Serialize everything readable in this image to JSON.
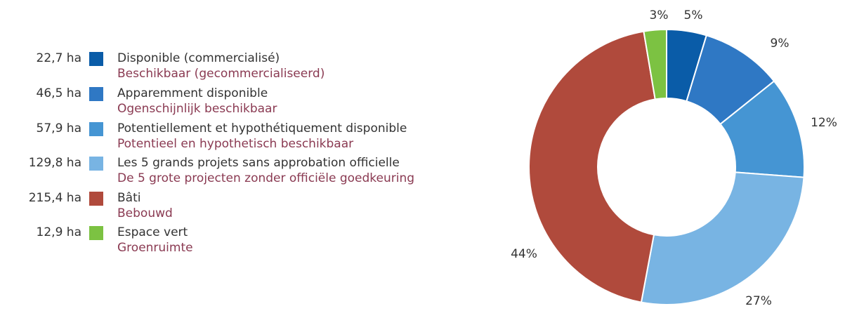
{
  "legend": [
    {
      "value": "22,7 ha",
      "label_fr": "Disponible (commercialisé)",
      "label_nl": "Beschikbaar (gecommercialiseerd)"
    },
    {
      "value": "46,5 ha",
      "label_fr": "Apparemment disponible",
      "label_nl": "Ogenschijnlijk beschikbaar"
    },
    {
      "value": "57,9 ha",
      "label_fr": "Potentiellement et hypothétiquement disponible",
      "label_nl": "Potentieel en hypothetisch beschikbaar"
    },
    {
      "value": "129,8 ha",
      "label_fr": "Les 5 grands projets sans approbation officielle",
      "label_nl": "De 5 grote projecten zonder officiële goedkeuring"
    },
    {
      "value": "215,4 ha",
      "label_fr": "Bâti",
      "label_nl": "Bebouwd"
    },
    {
      "value": "12,9 ha",
      "label_fr": "Espace vert",
      "label_nl": "Groenruimte"
    }
  ],
  "colors": {
    "secondary_label": "#8a3a52",
    "text": "#333333"
  },
  "chart_data": {
    "type": "pie",
    "variant": "donut",
    "title": "",
    "categories": [
      "Disponible (commercialisé)",
      "Apparemment disponible",
      "Potentiellement et hypothétiquement disponible",
      "Les 5 grands projets sans approbation officielle",
      "Bâti",
      "Espace vert"
    ],
    "values": [
      22.7,
      46.5,
      57.9,
      129.8,
      215.4,
      12.9
    ],
    "unit": "ha",
    "data_labels": [
      "5%",
      "9%",
      "12%",
      "27%",
      "44%",
      "3%"
    ],
    "colors": [
      "#0a5ca8",
      "#2f78c4",
      "#4595d3",
      "#78b4e3",
      "#b04a3c",
      "#7cc242"
    ],
    "start_angle_deg": 0,
    "direction": "clockwise"
  }
}
